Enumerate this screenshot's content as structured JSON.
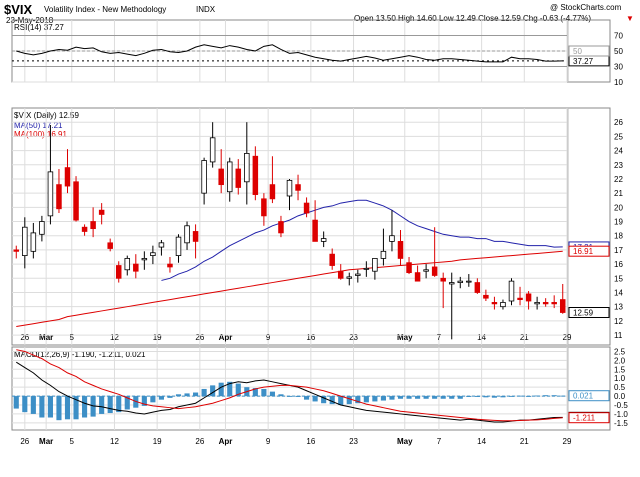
{
  "header": {
    "symbol": "$VIX",
    "name": "Volatility Index - New Methodology",
    "exchange": "INDX",
    "date": "23-May-2018",
    "quote": "Open 13.50  High 14.60  Low 12.49  Close 12.59  Chg -0.63 (-4.77%)",
    "quote_arrow": "▼",
    "watermark": "@ StockCharts.com"
  },
  "colors": {
    "up": "#ffffff",
    "down": "#dd0000",
    "ma50": "#2222aa",
    "ma100": "#dd0000",
    "hist": "#3d8fc6",
    "macd": "#000000",
    "signal": "#dd0000",
    "grid": "#dddddd"
  },
  "x_labels": [
    "26",
    "Mar",
    "5",
    "12",
    "19",
    "26",
    "Apr",
    "9",
    "16",
    "23",
    "May",
    "7",
    "14",
    "21",
    "29"
  ],
  "chart_data": [
    {
      "type": "line",
      "title": "RSI(14) 37.27",
      "y_ticks": [
        "70",
        "50",
        "30",
        "10"
      ],
      "ylim": [
        10,
        90
      ],
      "series": [
        {
          "name": "RSI(14)",
          "values": [
            50,
            47,
            45,
            47,
            50,
            52,
            51,
            55,
            53,
            54,
            49,
            47,
            48,
            46,
            44,
            47,
            51,
            52,
            49,
            48,
            50,
            55,
            58,
            56,
            54,
            57,
            55,
            52,
            50,
            56,
            58,
            52,
            47,
            48,
            45,
            42,
            40,
            38,
            37,
            39,
            41,
            43,
            41,
            38,
            40,
            42,
            44,
            42,
            39,
            38,
            40,
            40,
            39,
            38,
            37,
            36,
            36,
            36,
            42,
            40,
            40,
            39,
            37,
            37,
            37.27
          ]
        }
      ],
      "markers": [
        {
          "label": "37.27",
          "value": 37.27
        },
        {
          "label": "50",
          "value": 50
        }
      ]
    },
    {
      "type": "candlestick",
      "title": "$VIX (Daily) 12.59",
      "legend": [
        {
          "label": "MA(50) 17.21",
          "key": "ma50"
        },
        {
          "label": "MA(100) 16.91",
          "key": "ma100"
        }
      ],
      "y_ticks": [
        "26",
        "25",
        "24",
        "23",
        "22",
        "21",
        "20",
        "19",
        "18",
        "17",
        "16",
        "15",
        "14",
        "13",
        "12",
        "11"
      ],
      "ylim": [
        10.3,
        27
      ],
      "candles": [
        [
          17.0,
          17.3,
          16.4,
          16.9
        ],
        [
          16.6,
          19.3,
          15.7,
          18.6
        ],
        [
          16.9,
          18.9,
          16.4,
          18.2
        ],
        [
          18.1,
          19.4,
          17.6,
          19.0
        ],
        [
          19.4,
          25.8,
          18.8,
          22.5
        ],
        [
          21.6,
          22.7,
          19.6,
          19.9
        ],
        [
          22.8,
          24.1,
          21.0,
          21.5
        ],
        [
          21.8,
          22.2,
          19.0,
          19.1
        ],
        [
          18.6,
          18.8,
          18.0,
          18.3
        ],
        [
          19.0,
          20.0,
          17.9,
          18.5
        ],
        [
          19.8,
          20.3,
          18.8,
          19.5
        ],
        [
          17.5,
          17.8,
          16.9,
          17.1
        ],
        [
          15.9,
          16.2,
          14.7,
          15.0
        ],
        [
          15.6,
          16.6,
          15.2,
          16.4
        ],
        [
          16.0,
          16.7,
          15.0,
          15.5
        ],
        [
          16.3,
          16.9,
          15.6,
          16.4
        ],
        [
          16.6,
          17.3,
          16.0,
          16.8
        ],
        [
          17.2,
          17.7,
          16.6,
          17.5
        ],
        [
          16.0,
          16.5,
          15.4,
          15.8
        ],
        [
          16.6,
          18.1,
          16.1,
          17.9
        ],
        [
          17.5,
          19.0,
          17.0,
          18.7
        ],
        [
          18.3,
          18.8,
          16.4,
          17.6
        ],
        [
          21.0,
          23.5,
          20.2,
          23.3
        ],
        [
          23.2,
          26.0,
          22.8,
          24.9
        ],
        [
          22.7,
          24.1,
          21.0,
          21.6
        ],
        [
          21.1,
          23.5,
          20.4,
          23.2
        ],
        [
          22.7,
          23.4,
          20.9,
          21.4
        ],
        [
          21.8,
          26.0,
          20.2,
          23.8
        ],
        [
          23.6,
          24.3,
          20.5,
          20.9
        ],
        [
          20.6,
          21.0,
          18.7,
          19.4
        ],
        [
          21.6,
          23.6,
          20.3,
          20.6
        ],
        [
          19.0,
          19.4,
          17.9,
          18.2
        ],
        [
          20.8,
          22.0,
          19.8,
          21.9
        ],
        [
          21.6,
          22.3,
          20.5,
          21.2
        ],
        [
          20.3,
          20.7,
          19.3,
          19.6
        ],
        [
          19.1,
          20.5,
          17.6,
          17.6
        ],
        [
          17.6,
          18.3,
          17.2,
          17.8
        ],
        [
          16.7,
          17.1,
          15.6,
          15.9
        ],
        [
          15.5,
          16.0,
          14.9,
          15.0
        ],
        [
          15.0,
          15.4,
          14.5,
          15.1
        ],
        [
          15.2,
          15.6,
          14.7,
          15.3
        ],
        [
          15.7,
          16.2,
          15.1,
          15.7
        ],
        [
          15.5,
          16.4,
          14.9,
          16.4
        ],
        [
          16.4,
          18.5,
          15.9,
          16.9
        ],
        [
          17.6,
          19.8,
          16.9,
          18.0
        ],
        [
          17.6,
          18.4,
          15.9,
          16.4
        ],
        [
          16.1,
          16.5,
          15.3,
          15.4
        ],
        [
          15.4,
          15.9,
          14.8,
          14.8
        ],
        [
          15.5,
          16.0,
          15.0,
          15.6
        ],
        [
          15.8,
          18.6,
          15.1,
          15.2
        ],
        [
          15.0,
          15.4,
          12.9,
          14.8
        ],
        [
          14.6,
          15.4,
          10.7,
          14.7
        ],
        [
          14.7,
          15.1,
          14.3,
          14.8
        ],
        [
          14.8,
          15.3,
          14.4,
          14.8
        ],
        [
          14.7,
          15.0,
          13.9,
          14.0
        ],
        [
          13.8,
          14.2,
          13.4,
          13.6
        ],
        [
          13.3,
          13.7,
          12.8,
          13.2
        ],
        [
          13.0,
          13.5,
          12.8,
          13.3
        ],
        [
          13.4,
          15.0,
          13.1,
          14.8
        ],
        [
          13.6,
          14.4,
          13.1,
          13.5
        ],
        [
          13.9,
          14.1,
          12.8,
          13.4
        ],
        [
          13.2,
          13.7,
          12.8,
          13.3
        ],
        [
          13.3,
          13.6,
          13.0,
          13.2
        ],
        [
          13.3,
          13.8,
          12.9,
          13.2
        ],
        [
          13.5,
          14.6,
          12.5,
          12.59
        ]
      ],
      "series": [
        {
          "name": "MA(50)",
          "key": "ma50",
          "values": [
            null,
            null,
            null,
            null,
            null,
            null,
            null,
            null,
            null,
            null,
            null,
            null,
            null,
            null,
            null,
            null,
            null,
            14.85,
            15.0,
            15.3,
            15.5,
            15.8,
            16.2,
            16.5,
            16.9,
            17.3,
            17.6,
            17.9,
            18.2,
            18.4,
            18.7,
            18.9,
            19.1,
            19.4,
            19.6,
            19.8,
            20.0,
            20.1,
            20.3,
            20.4,
            20.5,
            20.5,
            20.3,
            20.1,
            19.8,
            19.4,
            19.0,
            18.7,
            18.5,
            18.3,
            18.1,
            18.0,
            17.9,
            17.9,
            17.8,
            17.8,
            17.6,
            17.6,
            17.5,
            17.4,
            17.3,
            17.3,
            17.3,
            17.2,
            17.21
          ]
        },
        {
          "name": "MA(100)",
          "key": "ma100",
          "values": [
            11.6,
            11.7,
            11.8,
            11.9,
            12.0,
            12.1,
            12.3,
            12.4,
            12.5,
            12.6,
            12.7,
            12.8,
            12.9,
            13.0,
            13.1,
            13.2,
            13.3,
            13.4,
            13.5,
            13.6,
            13.7,
            13.8,
            13.9,
            14.0,
            14.1,
            14.2,
            14.3,
            14.4,
            14.5,
            14.6,
            14.7,
            14.8,
            14.9,
            15.0,
            15.1,
            15.2,
            15.3,
            15.4,
            15.5,
            15.6,
            15.65,
            15.7,
            15.75,
            15.8,
            15.85,
            15.9,
            15.95,
            16.0,
            16.05,
            16.1,
            16.15,
            16.2,
            16.3,
            16.35,
            16.4,
            16.45,
            16.5,
            16.55,
            16.6,
            16.65,
            16.7,
            16.75,
            16.8,
            16.85,
            16.91
          ]
        }
      ],
      "markers": [
        {
          "label": "17.21",
          "value": 17.21,
          "key": "ma50"
        },
        {
          "label": "16.91",
          "value": 16.91,
          "key": "ma100"
        },
        {
          "label": "12.59",
          "value": 12.59,
          "key": "close"
        }
      ]
    },
    {
      "type": "line",
      "title": "MACD(12,26,9) -1.190, -1.211, 0.021",
      "y_ticks": [
        "2.5",
        "2.0",
        "1.5",
        "1.0",
        "0.5",
        "0.0",
        "-0.5",
        "-1.0",
        "-1.5"
      ],
      "ylim": [
        -1.9,
        2.75
      ],
      "series": [
        {
          "name": "MACD",
          "key": "macd",
          "values": [
            1.9,
            1.6,
            1.3,
            0.9,
            0.6,
            0.25,
            0.0,
            -0.2,
            -0.4,
            -0.55,
            -0.6,
            -0.7,
            -0.8,
            -0.85,
            -0.95,
            -1.0,
            -0.9,
            -0.8,
            -0.75,
            -0.6,
            -0.5,
            -0.4,
            -0.1,
            0.2,
            0.5,
            0.7,
            0.8,
            0.75,
            0.85,
            0.9,
            0.8,
            0.7,
            0.6,
            0.5,
            0.3,
            0.1,
            -0.1,
            -0.3,
            -0.5,
            -0.6,
            -0.7,
            -0.8,
            -0.85,
            -0.9,
            -0.95,
            -1.0,
            -1.05,
            -1.1,
            -1.15,
            -1.2,
            -1.25,
            -1.3,
            -1.35,
            -1.3,
            -1.35,
            -1.4,
            -1.45,
            -1.45,
            -1.4,
            -1.35,
            -1.35,
            -1.3,
            -1.25,
            -1.2,
            -1.19
          ]
        },
        {
          "name": "Signal",
          "key": "signal",
          "values": [
            2.6,
            2.5,
            2.3,
            2.1,
            1.8,
            1.6,
            1.3,
            1.1,
            0.8,
            0.6,
            0.4,
            0.25,
            0.1,
            -0.1,
            -0.3,
            -0.45,
            -0.55,
            -0.6,
            -0.65,
            -0.7,
            -0.65,
            -0.6,
            -0.5,
            -0.4,
            -0.25,
            -0.1,
            0.1,
            0.25,
            0.4,
            0.5,
            0.55,
            0.6,
            0.6,
            0.55,
            0.5,
            0.4,
            0.3,
            0.15,
            0.0,
            -0.15,
            -0.3,
            -0.45,
            -0.55,
            -0.65,
            -0.75,
            -0.85,
            -0.9,
            -0.95,
            -1.0,
            -1.05,
            -1.1,
            -1.15,
            -1.2,
            -1.25,
            -1.3,
            -1.33,
            -1.36,
            -1.38,
            -1.38,
            -1.37,
            -1.35,
            -1.33,
            -1.3,
            -1.25,
            -1.211
          ]
        },
        {
          "name": "Histogram",
          "key": "hist",
          "values": [
            -0.7,
            -0.9,
            -1.0,
            -1.2,
            -1.2,
            -1.35,
            -1.3,
            -1.3,
            -1.2,
            -1.15,
            -1.0,
            -0.95,
            -0.9,
            -0.75,
            -0.65,
            -0.55,
            -0.35,
            -0.2,
            -0.1,
            0.1,
            0.15,
            0.2,
            0.4,
            0.6,
            0.75,
            0.8,
            0.7,
            0.5,
            0.45,
            0.4,
            0.25,
            0.1,
            0.0,
            -0.05,
            -0.2,
            -0.3,
            -0.4,
            -0.45,
            -0.5,
            -0.45,
            -0.4,
            -0.35,
            -0.3,
            -0.25,
            -0.2,
            -0.15,
            -0.15,
            -0.15,
            -0.15,
            -0.15,
            -0.15,
            -0.15,
            -0.15,
            -0.05,
            -0.05,
            -0.07,
            -0.09,
            -0.07,
            -0.02,
            0.02,
            0.0,
            0.03,
            0.05,
            0.05,
            0.021
          ]
        }
      ],
      "markers": [
        {
          "label": "0.021",
          "value": 0.021
        },
        {
          "label": "-1.190",
          "value": -1.19
        },
        {
          "label": "-1.211",
          "value": -1.211
        }
      ]
    }
  ]
}
